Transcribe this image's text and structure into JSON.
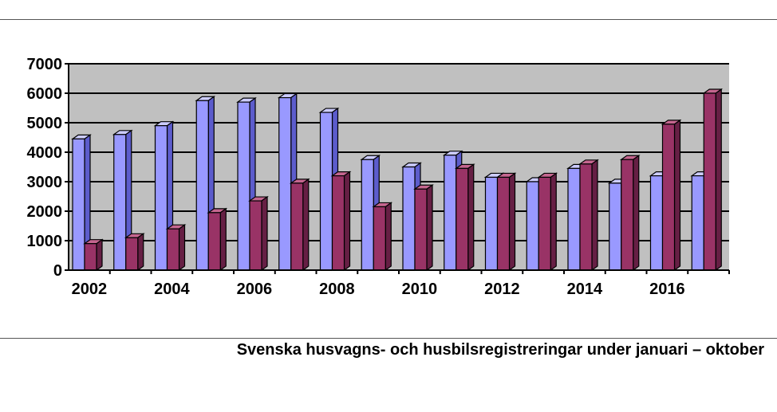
{
  "chart_data": {
    "type": "bar",
    "title": "",
    "xlabel": "",
    "ylabel": "",
    "ylim": [
      0,
      7000
    ],
    "yticks": [
      0,
      1000,
      2000,
      3000,
      4000,
      5000,
      6000,
      7000
    ],
    "categories": [
      "2002",
      "2003",
      "2004",
      "2005",
      "2006",
      "2007",
      "2008",
      "2009",
      "2010",
      "2011",
      "2012",
      "2013",
      "2014",
      "2015",
      "2016",
      "2017"
    ],
    "tick_labels": [
      "2002",
      "",
      "2004",
      "",
      "2006",
      "",
      "2008",
      "",
      "2010",
      "",
      "2012",
      "",
      "2014",
      "",
      "2016",
      ""
    ],
    "series": [
      {
        "values": [
          4450,
          4600,
          4900,
          5750,
          5700,
          5850,
          5350,
          3750,
          3500,
          3900,
          3150,
          3000,
          3450,
          2950,
          3200,
          3200
        ]
      },
      {
        "values": [
          900,
          1100,
          1400,
          1950,
          2350,
          2950,
          3200,
          2150,
          2750,
          3450,
          3150,
          3150,
          3600,
          3750,
          4950,
          6000
        ]
      }
    ],
    "grid": true,
    "legend": "none",
    "colors": {
      "series1_front": "#9999ff",
      "series1_side": "#5c5ccc",
      "series1_top": "#ccccff",
      "series2_front": "#993366",
      "series2_side": "#661f44",
      "series2_top": "#c5668f",
      "plot_background": "#c0c0c0",
      "gridline": "#000000"
    }
  },
  "caption": "Svenska husvagns- och husbilsregistreringar under januari – oktober"
}
